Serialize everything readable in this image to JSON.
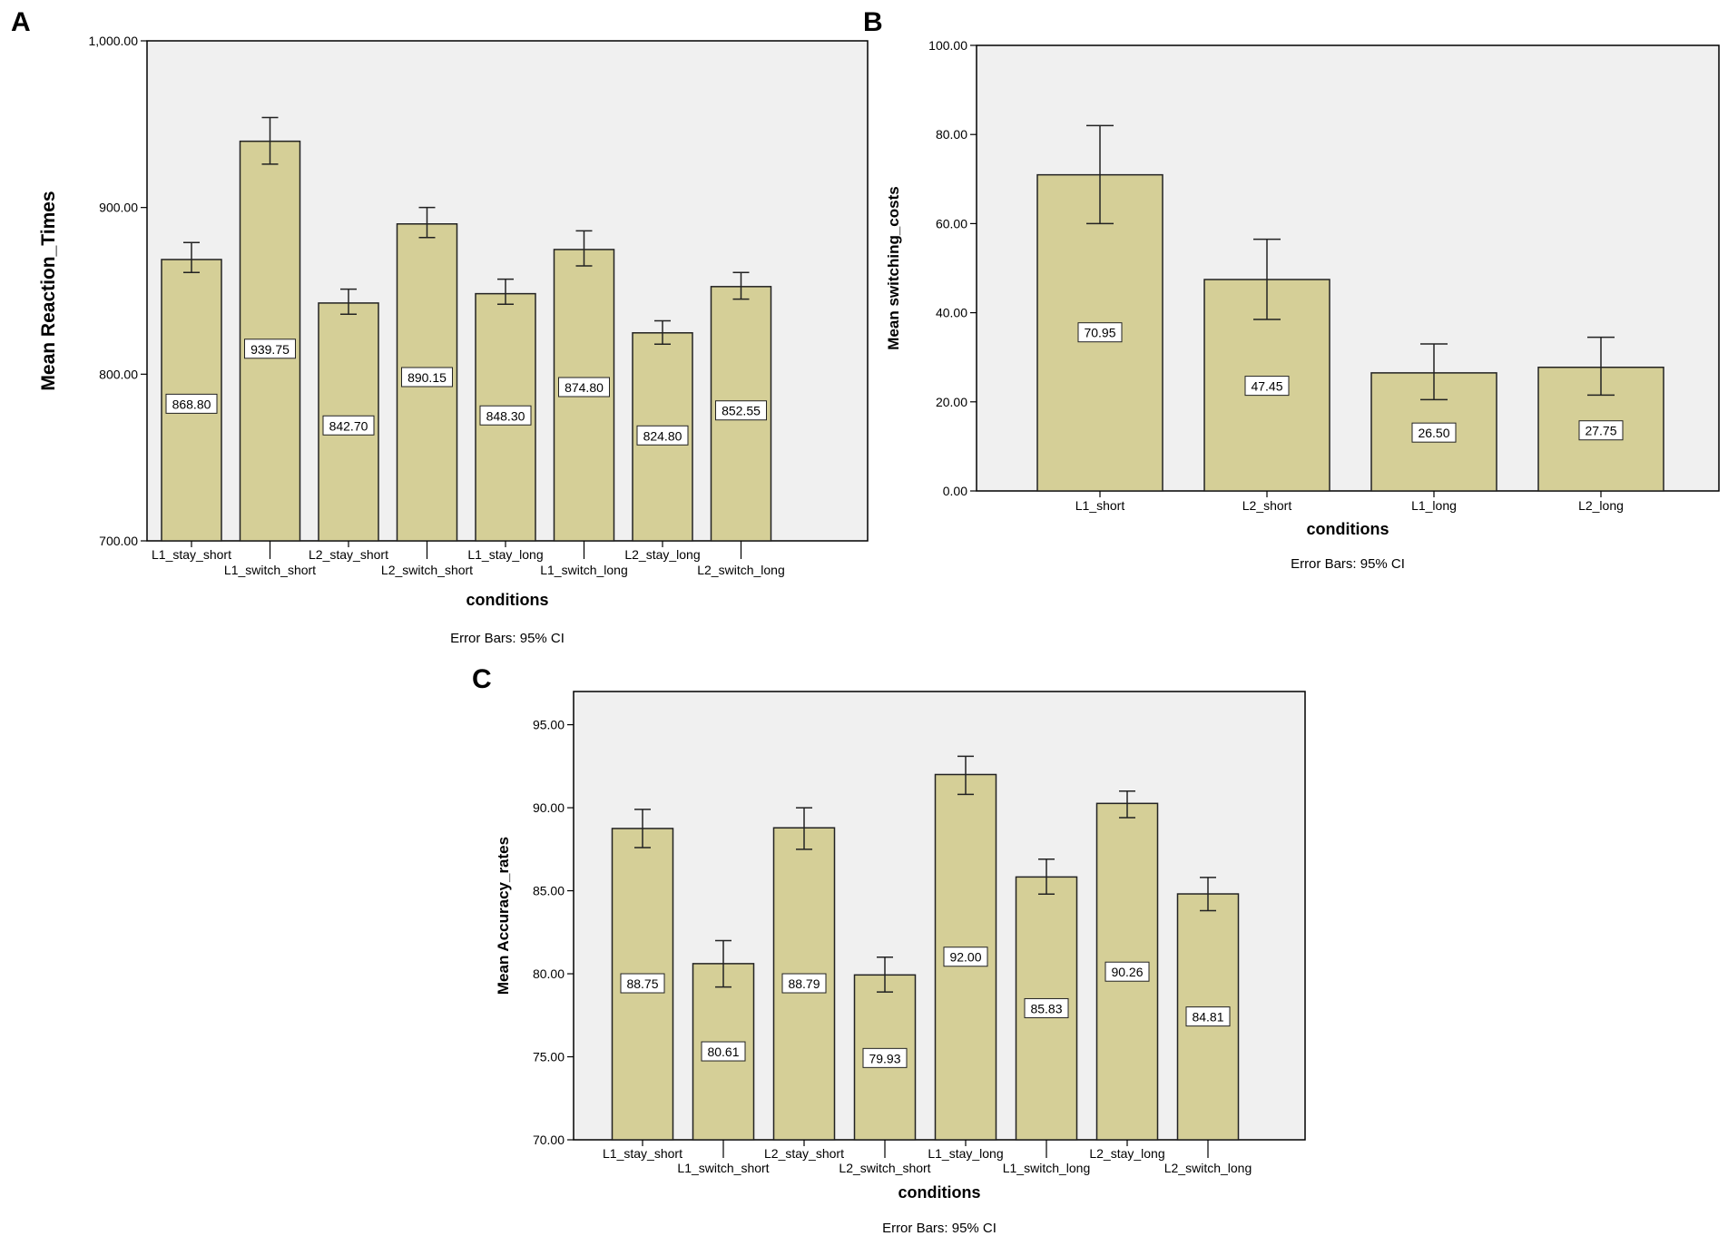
{
  "figure": {
    "panel_labels": [
      "A",
      "B",
      "C"
    ],
    "colors": {
      "bar_fill": "#d5cf97",
      "bar_stroke": "#222222",
      "plot_bg": "#f0f0f0",
      "frame": "#000000"
    }
  },
  "chart_data": [
    {
      "panel": "A",
      "type": "bar",
      "categories": [
        "L1_stay_short",
        "L1_switch_short",
        "L2_stay_short",
        "L2_switch_short",
        "L1_stay_long",
        "L1_switch_long",
        "L2_stay_long",
        "L2_switch_long"
      ],
      "values": [
        868.8,
        939.75,
        842.7,
        890.15,
        848.3,
        874.8,
        824.8,
        852.55
      ],
      "value_labels": [
        "868.80",
        "939.75",
        "842.70",
        "890.15",
        "848.30",
        "874.80",
        "824.80",
        "852.55"
      ],
      "error_low": [
        861,
        926,
        836,
        882,
        842,
        865,
        818,
        845
      ],
      "error_high": [
        879,
        954,
        851,
        900,
        857,
        886,
        832,
        861
      ],
      "ylim": [
        700,
        1000
      ],
      "yticks": [
        700,
        800,
        900,
        1000
      ],
      "ytick_labels": [
        "700.00",
        "800.00",
        "900.00",
        "1,000.00"
      ],
      "label_positions": [
        782,
        815,
        769,
        798,
        775,
        792,
        763,
        778
      ],
      "xlabel": "conditions",
      "ylabel": "Mean Reaction_Times",
      "note": "Error Bars: 95% CI"
    },
    {
      "panel": "B",
      "type": "bar",
      "categories": [
        "L1_short",
        "L2_short",
        "L1_long",
        "L2_long"
      ],
      "values": [
        70.95,
        47.45,
        26.5,
        27.75
      ],
      "value_labels": [
        "70.95",
        "47.45",
        "26.50",
        "27.75"
      ],
      "error_low": [
        60,
        38.5,
        20.5,
        21.5
      ],
      "error_high": [
        82,
        56.5,
        33,
        34.5
      ],
      "ylim": [
        0,
        100
      ],
      "yticks": [
        0,
        20,
        40,
        60,
        80,
        100
      ],
      "ytick_labels": [
        "0.00",
        "20.00",
        "40.00",
        "60.00",
        "80.00",
        "100.00"
      ],
      "label_positions": [
        35.5,
        23.5,
        13,
        13.5
      ],
      "xlabel": "conditions",
      "ylabel": "Mean switching_costs",
      "note": "Error Bars: 95% CI"
    },
    {
      "panel": "C",
      "type": "bar",
      "categories": [
        "L1_stay_short",
        "L1_switch_short",
        "L2_stay_short",
        "L2_switch_short",
        "L1_stay_long",
        "L1_switch_long",
        "L2_stay_long",
        "L2_switch_long"
      ],
      "values": [
        88.75,
        80.61,
        88.79,
        79.93,
        92.0,
        85.83,
        90.26,
        84.81
      ],
      "value_labels": [
        "88.75",
        "80.61",
        "88.79",
        "79.93",
        "92.00",
        "85.83",
        "90.26",
        "84.81"
      ],
      "error_low": [
        87.6,
        79.2,
        87.5,
        78.9,
        90.8,
        84.8,
        89.4,
        83.8
      ],
      "error_high": [
        89.9,
        82,
        90,
        81,
        93.1,
        86.9,
        91,
        85.8
      ],
      "ylim": [
        70,
        97
      ],
      "yticks": [
        70,
        75,
        80,
        85,
        90,
        95
      ],
      "ytick_labels": [
        "70.00",
        "75.00",
        "80.00",
        "85.00",
        "90.00",
        "95.00"
      ],
      "label_positions": [
        79.4,
        75.3,
        79.4,
        74.9,
        81.0,
        77.9,
        80.1,
        77.4
      ],
      "xlabel": "conditions",
      "ylabel": "Mean Accuracy_rates",
      "note": "Error Bars: 95% CI"
    }
  ]
}
